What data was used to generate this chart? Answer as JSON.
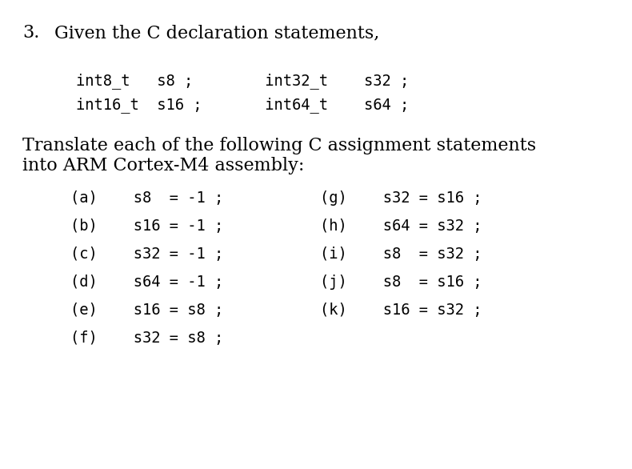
{
  "bg_color": "#ffffff",
  "title_number": "3.",
  "title_text": "Given the C declaration statements,",
  "decl_line1": "int8_t   s8 ;        int32_t    s32 ;",
  "decl_line2": "int16_t  s16 ;       int64_t    s64 ;",
  "body_text_line1": "Translate each of the following C assignment statements",
  "body_text_line2": "into ARM Cortex-M4 assembly:",
  "items_left": [
    "(a)    s8  = -1 ;",
    "(b)    s16 = -1 ;",
    "(c)    s32 = -1 ;",
    "(d)    s64 = -1 ;",
    "(e)    s16 = s8 ;",
    "(f)    s32 = s8 ;"
  ],
  "items_right": [
    "(g)    s32 = s16 ;",
    "(h)    s64 = s32 ;",
    "(i)    s8  = s32 ;",
    "(j)    s8  = s16 ;",
    "(k)    s16 = s32 ;",
    ""
  ],
  "mono_font_size": 13.5,
  "body_font_size": 16,
  "title_font_size": 16
}
